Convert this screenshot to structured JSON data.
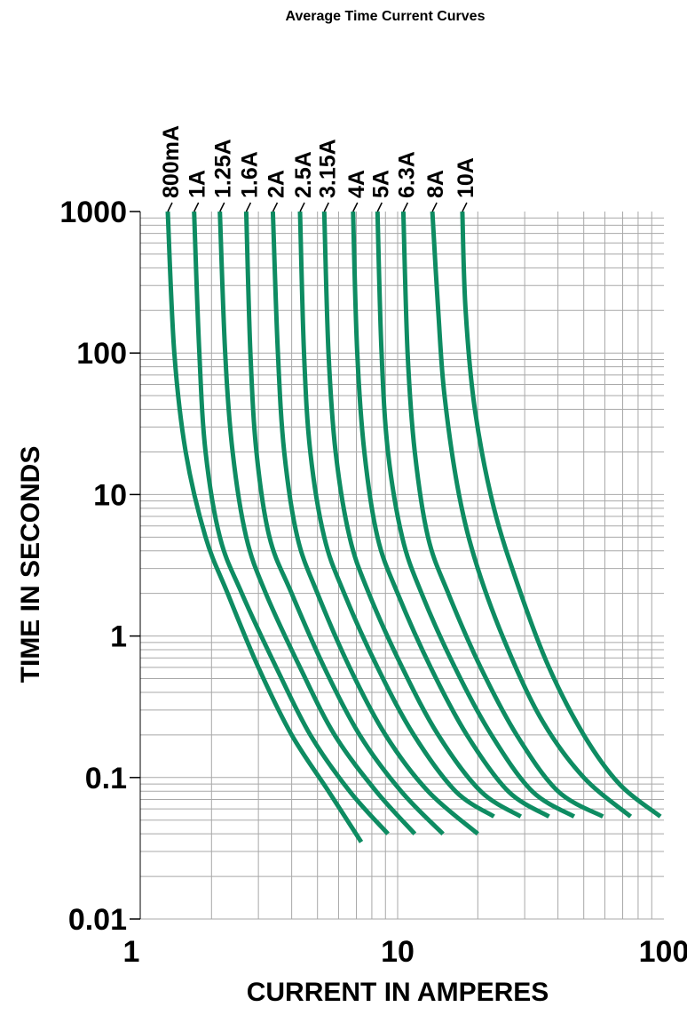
{
  "chart_data": {
    "type": "line",
    "title": "Average Time Current Curves",
    "xlabel": "CURRENT IN AMPERES",
    "ylabel": "TIME IN SECONDS",
    "xscale": "log",
    "yscale": "log",
    "xlim": [
      1,
      100
    ],
    "ylim": [
      0.01,
      1000
    ],
    "xticks": [
      "1",
      "10",
      "100"
    ],
    "yticks": [
      "1000",
      "100",
      "10",
      "1",
      "0.1",
      "0.01"
    ],
    "grid": true,
    "color": "#0e8c62",
    "series": [
      {
        "name": "800mA",
        "points": [
          [
            1.37,
            1000
          ],
          [
            1.45,
            100
          ],
          [
            1.6,
            20
          ],
          [
            1.9,
            5
          ],
          [
            2.3,
            2
          ],
          [
            3,
            0.6
          ],
          [
            4,
            0.2
          ],
          [
            5.5,
            0.08
          ],
          [
            7.3,
            0.035
          ]
        ]
      },
      {
        "name": "1A",
        "points": [
          [
            1.72,
            1000
          ],
          [
            1.8,
            100
          ],
          [
            1.9,
            20
          ],
          [
            2.15,
            5
          ],
          [
            2.6,
            2
          ],
          [
            3.5,
            0.6
          ],
          [
            4.7,
            0.2
          ],
          [
            6.6,
            0.08
          ],
          [
            9.2,
            0.04
          ]
        ]
      },
      {
        "name": "1.25A",
        "points": [
          [
            2.15,
            1000
          ],
          [
            2.25,
            100
          ],
          [
            2.4,
            20
          ],
          [
            2.7,
            5
          ],
          [
            3.2,
            2
          ],
          [
            4.3,
            0.6
          ],
          [
            5.8,
            0.2
          ],
          [
            8.3,
            0.08
          ],
          [
            11.6,
            0.04
          ]
        ]
      },
      {
        "name": "1.6A",
        "points": [
          [
            2.7,
            1000
          ],
          [
            2.8,
            100
          ],
          [
            2.95,
            20
          ],
          [
            3.3,
            5
          ],
          [
            4,
            2
          ],
          [
            5.3,
            0.6
          ],
          [
            7.2,
            0.2
          ],
          [
            10.3,
            0.08
          ],
          [
            14.8,
            0.04
          ]
        ]
      },
      {
        "name": "2A",
        "points": [
          [
            3.4,
            1000
          ],
          [
            3.55,
            100
          ],
          [
            3.75,
            20
          ],
          [
            4.2,
            5
          ],
          [
            5,
            2
          ],
          [
            6.6,
            0.6
          ],
          [
            9,
            0.2
          ],
          [
            13,
            0.08
          ],
          [
            20,
            0.04
          ]
        ]
      },
      {
        "name": "2.5A",
        "points": [
          [
            4.3,
            1000
          ],
          [
            4.45,
            100
          ],
          [
            4.7,
            20
          ],
          [
            5.3,
            5
          ],
          [
            6.3,
            2
          ],
          [
            8.4,
            0.6
          ],
          [
            11.5,
            0.2
          ],
          [
            16.5,
            0.08
          ],
          [
            23,
            0.053
          ]
        ]
      },
      {
        "name": "3.15A",
        "points": [
          [
            5.3,
            1000
          ],
          [
            5.5,
            100
          ],
          [
            5.85,
            20
          ],
          [
            6.6,
            5
          ],
          [
            7.8,
            2
          ],
          [
            10.4,
            0.6
          ],
          [
            14.2,
            0.2
          ],
          [
            20.5,
            0.08
          ],
          [
            29,
            0.053
          ]
        ]
      },
      {
        "name": "4A",
        "points": [
          [
            6.8,
            1000
          ],
          [
            7.05,
            100
          ],
          [
            7.5,
            20
          ],
          [
            8.4,
            5
          ],
          [
            10,
            2
          ],
          [
            13.3,
            0.6
          ],
          [
            18.2,
            0.2
          ],
          [
            26,
            0.08
          ],
          [
            37,
            0.053
          ]
        ]
      },
      {
        "name": "5A",
        "points": [
          [
            8.4,
            1000
          ],
          [
            8.7,
            100
          ],
          [
            9.2,
            20
          ],
          [
            10.4,
            5
          ],
          [
            12.3,
            2
          ],
          [
            16.4,
            0.6
          ],
          [
            22.5,
            0.2
          ],
          [
            32,
            0.08
          ],
          [
            46,
            0.053
          ]
        ]
      },
      {
        "name": "6.3A",
        "points": [
          [
            10.5,
            1000
          ],
          [
            10.9,
            100
          ],
          [
            11.6,
            20
          ],
          [
            13,
            5
          ],
          [
            15.5,
            2
          ],
          [
            20.5,
            0.6
          ],
          [
            28,
            0.2
          ],
          [
            40,
            0.08
          ],
          [
            59,
            0.053
          ]
        ]
      },
      {
        "name": "8A",
        "points": [
          [
            13.5,
            1000
          ],
          [
            14.2,
            200
          ],
          [
            15,
            50
          ],
          [
            17,
            10
          ],
          [
            20,
            3
          ],
          [
            26,
            0.8
          ],
          [
            35,
            0.25
          ],
          [
            50,
            0.1
          ],
          [
            75,
            0.053
          ]
        ]
      },
      {
        "name": "10A",
        "points": [
          [
            17.5,
            1000
          ],
          [
            18,
            200
          ],
          [
            19.5,
            40
          ],
          [
            23,
            8
          ],
          [
            29,
            2
          ],
          [
            37,
            0.6
          ],
          [
            50,
            0.2
          ],
          [
            68,
            0.09
          ],
          [
            97,
            0.053
          ]
        ]
      }
    ]
  }
}
